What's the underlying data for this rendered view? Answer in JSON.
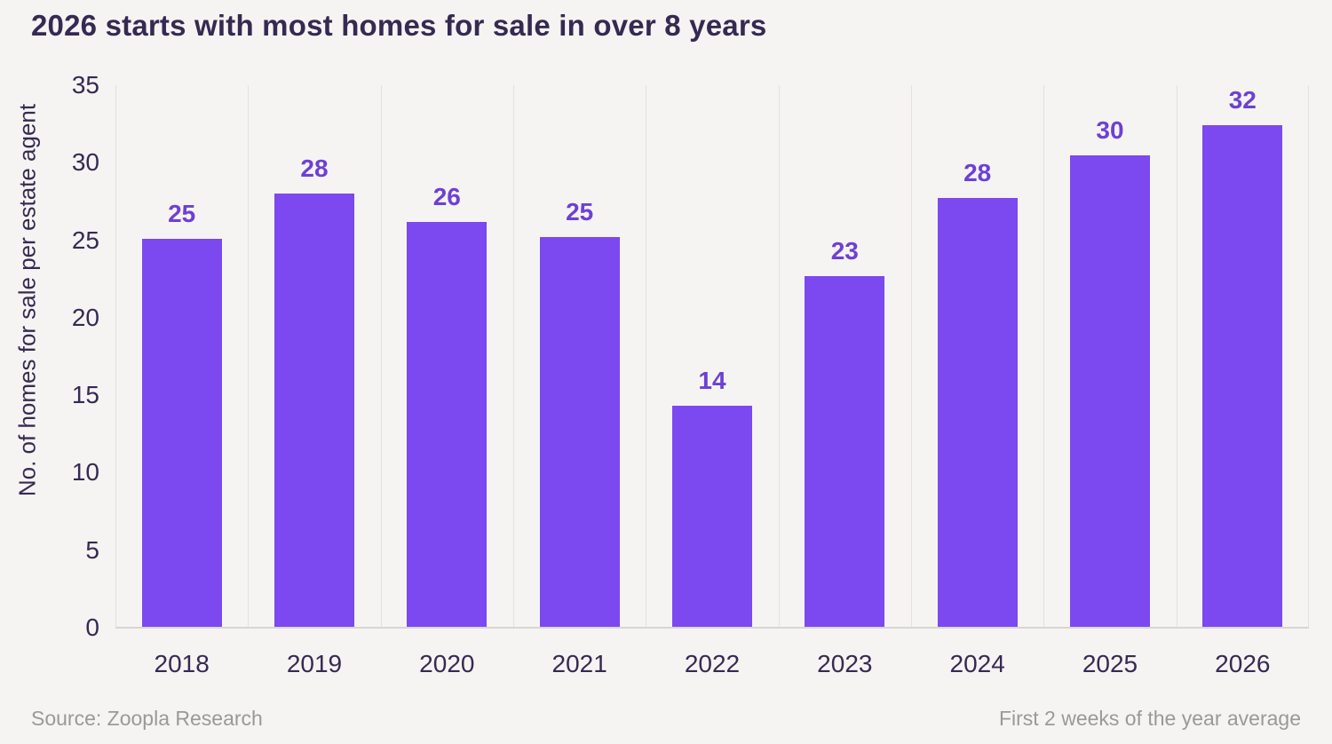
{
  "page": {
    "background": "#f5f4f2"
  },
  "chart_data": {
    "type": "bar",
    "title": "2026 starts with most homes for sale in over 8 years",
    "categories": [
      "2018",
      "2019",
      "2020",
      "2021",
      "2022",
      "2023",
      "2024",
      "2025",
      "2026"
    ],
    "values": [
      25,
      28,
      26,
      25,
      14,
      23,
      28,
      30,
      32
    ],
    "precise_values": [
      25.1,
      28.0,
      26.2,
      25.2,
      14.3,
      22.7,
      27.7,
      30.5,
      32.4
    ],
    "value_labels": [
      "25",
      "28",
      "26",
      "25",
      "14",
      "23",
      "28",
      "30",
      "32"
    ],
    "xlabel": "",
    "ylabel": "No. of homes for sale per estate agent",
    "ylim": [
      0,
      35
    ],
    "yticks": [
      0,
      5,
      10,
      15,
      20,
      25,
      30,
      35
    ],
    "grid": "vertical category separators only",
    "legend": "none",
    "colors": {
      "bar": "#7c48f0",
      "value_label": "#6e40d4",
      "axis_text": "#352a52",
      "gridline": "#e4e1de",
      "axis_line": "#d9d6d2",
      "muted_text": "#9b9998"
    }
  },
  "footer": {
    "source": "Source: Zoopla Research",
    "note": "First 2 weeks of the year average"
  }
}
